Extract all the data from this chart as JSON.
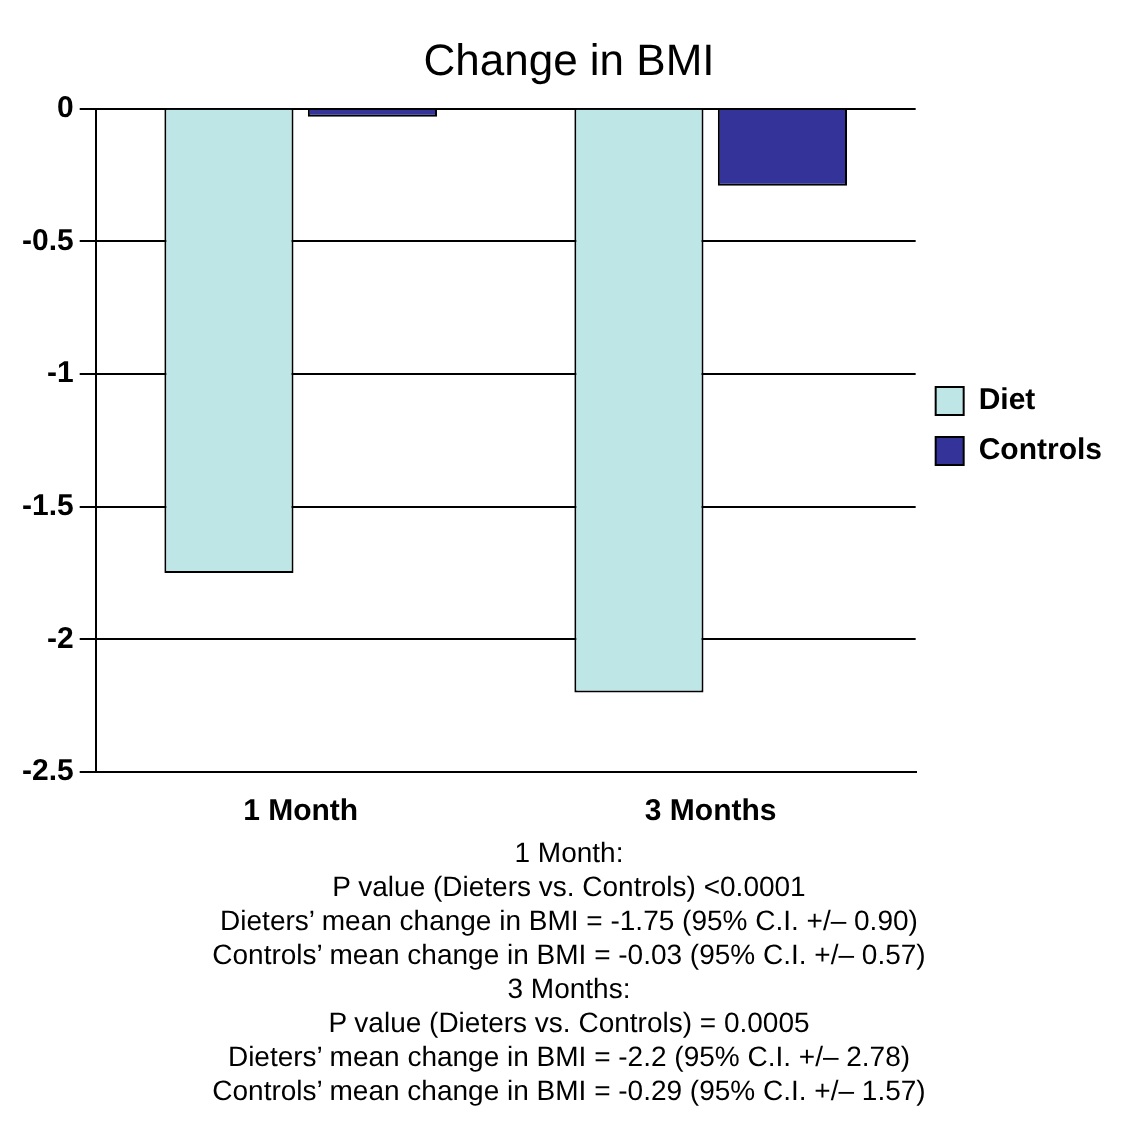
{
  "chart_data": {
    "type": "bar",
    "title": "Change in BMI",
    "categories": [
      "1 Month",
      "3 Months"
    ],
    "series": [
      {
        "name": "Diet",
        "color": "#bfe6e6",
        "values": [
          -1.75,
          -2.2
        ]
      },
      {
        "name": "Controls",
        "color": "#333399",
        "values": [
          -0.03,
          -0.29
        ]
      }
    ],
    "ylim": [
      -2.5,
      0
    ],
    "yticks": [
      0,
      -0.5,
      -1,
      -1.5,
      -2,
      -2.5
    ],
    "grid": "y",
    "legend": "right",
    "annotations": [
      "1 Month:",
      "P value (Dieters vs. Controls) <0.0001",
      "Dieters’ mean change in BMI = -1.75 (95% C.I. +/– 0.90)",
      "Controls’ mean change in BMI = -0.03 (95% C.I. +/– 0.57)",
      "3 Months:",
      "P value (Dieters vs. Controls) = 0.0005",
      "Dieters’ mean change in BMI = -2.2 (95% C.I. +/– 2.78)",
      "Controls’ mean change in BMI = -0.29 (95% C.I. +/– 1.57)"
    ]
  }
}
